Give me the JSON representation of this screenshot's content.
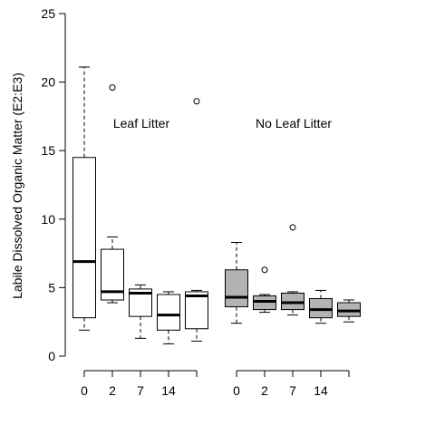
{
  "chart_data": {
    "type": "boxplot",
    "ylabel": "Labile Dissolved Organic Matter (E2:E3)",
    "ylim": [
      0,
      25
    ],
    "yticks": [
      0,
      5,
      10,
      15,
      20,
      25
    ],
    "groups": [
      {
        "label": "Leaf Litter",
        "fill": "#ffffff",
        "xtick_labels": [
          "0",
          "2",
          "7",
          "14",
          ""
        ],
        "boxes": [
          {
            "min": 1.9,
            "q1": 2.8,
            "median": 6.9,
            "q3": 14.5,
            "max": 21.1,
            "outliers": []
          },
          {
            "min": 3.9,
            "q1": 4.1,
            "median": 4.7,
            "q3": 7.8,
            "max": 8.7,
            "outliers": [
              19.6
            ]
          },
          {
            "min": 1.3,
            "q1": 2.9,
            "median": 4.6,
            "q3": 4.9,
            "max": 5.2,
            "outliers": []
          },
          {
            "min": 0.9,
            "q1": 1.9,
            "median": 3.0,
            "q3": 4.5,
            "max": 4.7,
            "outliers": []
          },
          {
            "min": 1.1,
            "q1": 2.0,
            "median": 4.4,
            "q3": 4.7,
            "max": 4.8,
            "outliers": [
              18.6
            ]
          }
        ]
      },
      {
        "label": "No Leaf Litter",
        "fill": "#b3b3b3",
        "xtick_labels": [
          "0",
          "2",
          "7",
          "14",
          ""
        ],
        "boxes": [
          {
            "min": 2.4,
            "q1": 3.6,
            "median": 4.3,
            "q3": 6.3,
            "max": 8.3,
            "outliers": []
          },
          {
            "min": 3.2,
            "q1": 3.4,
            "median": 4.0,
            "q3": 4.4,
            "max": 4.5,
            "outliers": [
              6.3
            ]
          },
          {
            "min": 3.0,
            "q1": 3.4,
            "median": 3.9,
            "q3": 4.6,
            "max": 4.7,
            "outliers": [
              9.4
            ]
          },
          {
            "min": 2.4,
            "q1": 2.8,
            "median": 3.4,
            "q3": 4.2,
            "max": 4.8,
            "outliers": []
          },
          {
            "min": 2.5,
            "q1": 2.9,
            "median": 3.3,
            "q3": 3.9,
            "max": 4.1,
            "outliers": []
          }
        ]
      }
    ]
  }
}
